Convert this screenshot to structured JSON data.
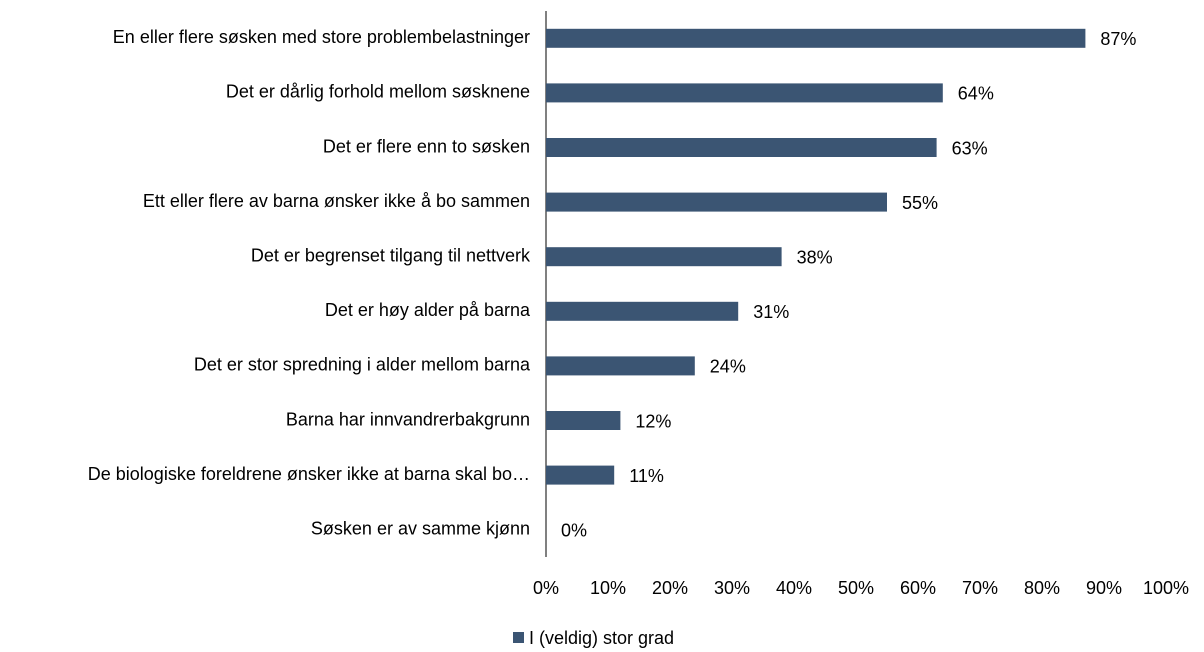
{
  "chart_data": {
    "type": "barh",
    "categories": [
      "En eller flere søsken med store problembelastninger",
      "Det er dårlig forhold mellom søsknene",
      "Det er flere enn to søsken",
      "Ett eller flere av barna ønsker ikke å bo sammen",
      "Det er begrenset tilgang til nettverk",
      "Det er høy alder på barna",
      "Det er stor spredning i alder mellom barna",
      "Barna har innvandrerbakgrunn",
      "De biologiske foreldrene ønsker ikke at barna skal bo…",
      "Søsken er av samme kjønn"
    ],
    "series": [
      {
        "name": "I (veldig) stor grad",
        "color": "#3b5573",
        "values": [
          87,
          64,
          63,
          55,
          38,
          31,
          24,
          12,
          11,
          0
        ],
        "value_labels": [
          "87%",
          "64%",
          "63%",
          "55%",
          "38%",
          "31%",
          "24%",
          "12%",
          "11%",
          "0%"
        ]
      }
    ],
    "xlim": [
      0,
      100
    ],
    "xticks": [
      {
        "value": 0,
        "label": "0%"
      },
      {
        "value": 10,
        "label": "10%"
      },
      {
        "value": 20,
        "label": "20%"
      },
      {
        "value": 30,
        "label": "30%"
      },
      {
        "value": 40,
        "label": "40%"
      },
      {
        "value": 50,
        "label": "50%"
      },
      {
        "value": 60,
        "label": "60%"
      },
      {
        "value": 70,
        "label": "70%"
      },
      {
        "value": 80,
        "label": "80%"
      },
      {
        "value": 90,
        "label": "90%"
      },
      {
        "value": 100,
        "label": "100%"
      }
    ],
    "grid": false,
    "legend": "bottom"
  }
}
